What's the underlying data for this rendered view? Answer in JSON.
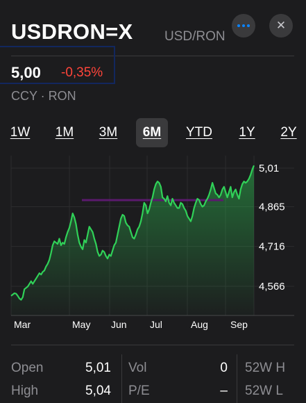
{
  "header": {
    "symbol": "USDRON=X",
    "pair": "USD/RON",
    "more_icon": "ellipsis-icon",
    "close_icon": "close-icon",
    "close_glyph": "✕"
  },
  "quote": {
    "price": "5,00",
    "change_percent": "-0,35%",
    "change_color": "#ff453a",
    "meta": "CCY · RON"
  },
  "ranges": [
    {
      "label": "1W",
      "active": false
    },
    {
      "label": "1M",
      "active": false
    },
    {
      "label": "3M",
      "active": false
    },
    {
      "label": "6M",
      "active": true
    },
    {
      "label": "YTD",
      "active": false
    },
    {
      "label": "1Y",
      "active": false
    },
    {
      "label": "2Y",
      "active": false
    }
  ],
  "chart_data": {
    "type": "area",
    "x_ticks": [
      "Mar",
      "May",
      "Jun",
      "Jul",
      "Aug",
      "Sep"
    ],
    "y_ticks": [
      "5,01",
      "4,865",
      "4,716",
      "4,566"
    ],
    "y_tick_values": [
      5.01,
      4.865,
      4.716,
      4.566
    ],
    "previous_close_line": 4.89,
    "line_color": "#30d158",
    "previous_close_color": "#5b1a6e",
    "grid": true,
    "series": [
      {
        "values": [
          4.53,
          4.535,
          4.54,
          4.538,
          4.53,
          4.52,
          4.515,
          4.525,
          4.555,
          4.56,
          4.565,
          4.575,
          4.585,
          4.575,
          4.585,
          4.595,
          4.605,
          4.615,
          4.61,
          4.62,
          4.625,
          4.64,
          4.65,
          4.665,
          4.69,
          4.72,
          4.735,
          4.73,
          4.725,
          4.745,
          4.72,
          4.73,
          4.725,
          4.75,
          4.77,
          4.785,
          4.81,
          4.84,
          4.825,
          4.8,
          4.76,
          4.73,
          4.715,
          4.705,
          4.74,
          4.73,
          4.76,
          4.79,
          4.78,
          4.77,
          4.745,
          4.725,
          4.695,
          4.68,
          4.685,
          4.7,
          4.695,
          4.68,
          4.67,
          4.685,
          4.68,
          4.7,
          4.72,
          4.73,
          4.76,
          4.79,
          4.82,
          4.835,
          4.83,
          4.805,
          4.795,
          4.79,
          4.77,
          4.75,
          4.745,
          4.76,
          4.78,
          4.79,
          4.81,
          4.84,
          4.88,
          4.87,
          4.84,
          4.855,
          4.88,
          4.9,
          4.93,
          4.95,
          4.96,
          4.955,
          4.94,
          4.9,
          4.895,
          4.885,
          4.905,
          4.88,
          4.87,
          4.895,
          4.88,
          4.87,
          4.86,
          4.86,
          4.88,
          4.875,
          4.86,
          4.85,
          4.83,
          4.82,
          4.81,
          4.83,
          4.86,
          4.88,
          4.895,
          4.89,
          4.875,
          4.865,
          4.87,
          4.885,
          4.895,
          4.91,
          4.93,
          4.955,
          4.935,
          4.915,
          4.91,
          4.9,
          4.91,
          4.93,
          4.94,
          4.92,
          4.9,
          4.92,
          4.94,
          4.9,
          4.92,
          4.93,
          4.91,
          4.895,
          4.93,
          4.95,
          4.96,
          4.955,
          4.96,
          4.97,
          4.985,
          5.005,
          5.02
        ]
      }
    ]
  },
  "stats": {
    "rows": [
      {
        "l1": "Open",
        "v1": "5,01",
        "l2": "Vol",
        "v2": "0",
        "l3": "52W H"
      },
      {
        "l1": "High",
        "v1": "5,04",
        "l2": "P/E",
        "v2": "–",
        "l3": "52W L"
      }
    ]
  }
}
